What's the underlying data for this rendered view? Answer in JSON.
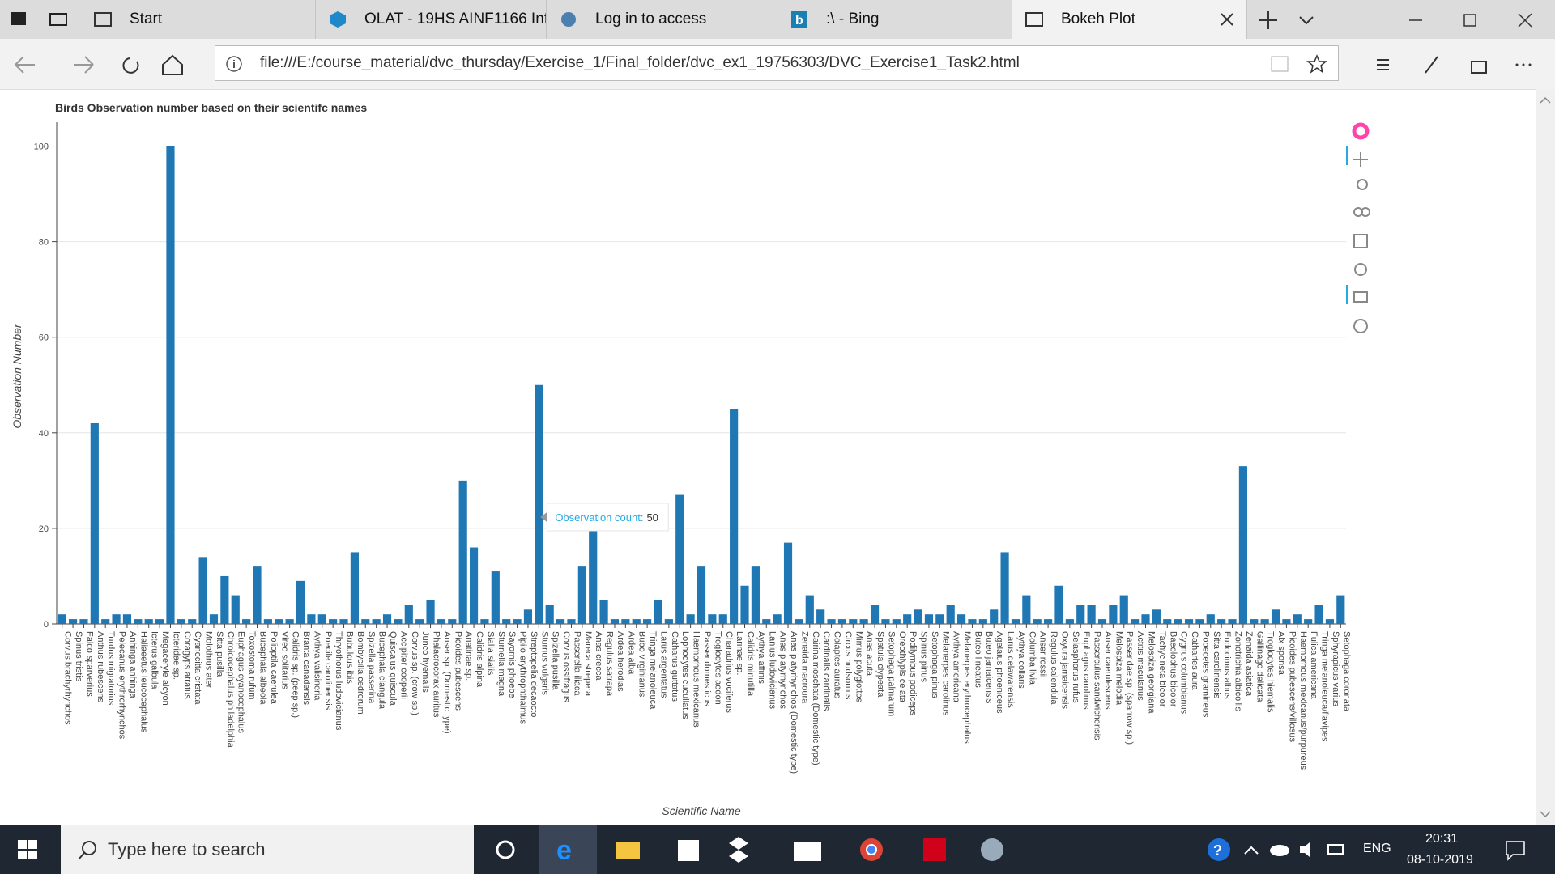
{
  "browser": {
    "tabs": [
      "Start",
      "OLAT - 19HS AINF1166 Inf",
      "Log in to access",
      ":\\ - Bing",
      "Bokeh Plot"
    ],
    "url": "file:///E:/course_material/dvc_thursday/Exercise_1/Final_folder/dvc_ex1_19756303/DVC_Exercise1_Task2.html"
  },
  "taskbar": {
    "search": "Type here to search",
    "language": "ENG",
    "time": "20:31",
    "date": "08-10-2019"
  },
  "chart_data": {
    "type": "bar",
    "title": "Birds Observation number based on their scientifc names",
    "xlabel": "Scientific Name",
    "ylabel": "Observation Number",
    "color": "#1f77b4",
    "grid": true,
    "ylim": [
      0,
      105
    ],
    "yticks": [
      0,
      20,
      40,
      60,
      80,
      100
    ],
    "tooltip": {
      "label": "Observation count:",
      "value": 50,
      "index": 44
    },
    "categories": [
      "Corvus brachyrhynchos",
      "Spinus tristis",
      "Falco sparverius",
      "Anthus rubescens",
      "Turdus migratorius",
      "Pelecanus erythrorhynchos",
      "Anhinga anhinga",
      "Haliaeetus leucocephalus",
      "Icterus galbula",
      "Megaceryle alcyon",
      "Icteridae sp.",
      "Coragyps atratus",
      "Cyanocitta cristata",
      "Molothrus ater",
      "Sitta pusilla",
      "Chroicocephalus philadelphia",
      "Euphagus cyanocephalus",
      "Toxostoma rufum",
      "Bucephala albeola",
      "Polioptila caerulea",
      "Vireo solitarius",
      "Calidris sp. (peep sp.)",
      "Branta canadensis",
      "Aythya valisineria",
      "Poecile carolinensis",
      "Thryothorus ludovicianus",
      "Bubulcus ibis",
      "Bombycilla cedrorum",
      "Spizella passerina",
      "Bucephala clangula",
      "Quiscalus quiscula",
      "Accipiter cooperii",
      "Corvus sp. (crow sp.)",
      "Junco hyemalis",
      "Phalacrocorax auritus",
      "Anser sp. (Domestic type)",
      "Picoides pubescens",
      "Anatinae sp.",
      "Calidris alpina",
      "Sialia sialis",
      "Sturnella magna",
      "Sayornis phoebe",
      "Pipilo erythrophthalmus",
      "Streptopelia decaocto",
      "Sturnus vulgaris",
      "Spizella pusilla",
      "Corvus ossifragus",
      "Passerella iliaca",
      "Mareca strepera",
      "Anas crecca",
      "Regulus satrapa",
      "Ardea herodias",
      "Ardea alba",
      "Bubo virginianus",
      "Tringa melanoleuca",
      "Larus argentatus",
      "Catharus guttatus",
      "Lophodytes cucullatus",
      "Haemorhous mexicanus",
      "Passer domesticus",
      "Troglodytes aedon",
      "Charadrius vociferus",
      "Larinae sp.",
      "Calidris minutilla",
      "Aythya affinis",
      "Lanius ludovicianus",
      "Anas platyrhynchos",
      "Anas platyrhynchos (Domestic type)",
      "Zenaida macroura",
      "Cairina moschata (Domestic type)",
      "Cardinalis cardinalis",
      "Colaptes auratus",
      "Circus hudsonius",
      "Mimus polyglottos",
      "Anas acuta",
      "Spatula clypeata",
      "Setophaga palmarum",
      "Oreothlypis celata",
      "Podilymbus podiceps",
      "Spinus pinus",
      "Setophaga pinus",
      "Melanerpes carolinus",
      "Aythya americana",
      "Melanerpes erythrocephalus",
      "Buteo lineatus",
      "Buteo jamaicensis",
      "Agelaius phoeniceus",
      "Larus delawarensis",
      "Aythya collaris",
      "Columba livia",
      "Anser rossii",
      "Regulus calendula",
      "Oxyura jamaicensis",
      "Selasphorus rufus",
      "Euphagus carolinus",
      "Passerculus sandwichensis",
      "Anser caerulescens",
      "Melospiza melodia",
      "Passeridae sp. (sparrow sp.)",
      "Actitis macularius",
      "Melospiza georgiana",
      "Tachycineta bicolor",
      "Baeolophus bicolor",
      "Cygnus columbianus",
      "Cathartes aura",
      "Pooecetes gramineus",
      "Sitta carolinensis",
      "Eudocimus albus",
      "Zonotrichia albicollis",
      "Zenaida asiatica",
      "Gallinago delicata",
      "Troglodytes hiemalis",
      "Aix sponsa",
      "Picoides pubescens/villosus",
      "Haemorhous mexicanus/purpureus",
      "Fulica americana",
      "Tringa melanoleuca/flavipes",
      "Sphyrapicus varius",
      "Setophaga coronata"
    ],
    "values": [
      2,
      1,
      1,
      42,
      1,
      2,
      2,
      1,
      1,
      1,
      100,
      1,
      1,
      14,
      2,
      10,
      6,
      1,
      12,
      1,
      1,
      1,
      9,
      2,
      2,
      1,
      1,
      15,
      1,
      1,
      2,
      1,
      4,
      1,
      5,
      1,
      1,
      30,
      16,
      1,
      11,
      1,
      1,
      3,
      50,
      4,
      1,
      1,
      12,
      22,
      5,
      1,
      1,
      1,
      1,
      5,
      1,
      27,
      2,
      12,
      2,
      2,
      45,
      8,
      12,
      1,
      2,
      17,
      1,
      6,
      3,
      1,
      1,
      1,
      1,
      4,
      1,
      1,
      2,
      3,
      2,
      2,
      4,
      2,
      1,
      1,
      3,
      15,
      1,
      6,
      1,
      1,
      8,
      1,
      4,
      4,
      1,
      4,
      6,
      1,
      2,
      3,
      1,
      1,
      1,
      1,
      2,
      1,
      1,
      33,
      1,
      1,
      3,
      1,
      2,
      1,
      4,
      1,
      6
    ]
  }
}
